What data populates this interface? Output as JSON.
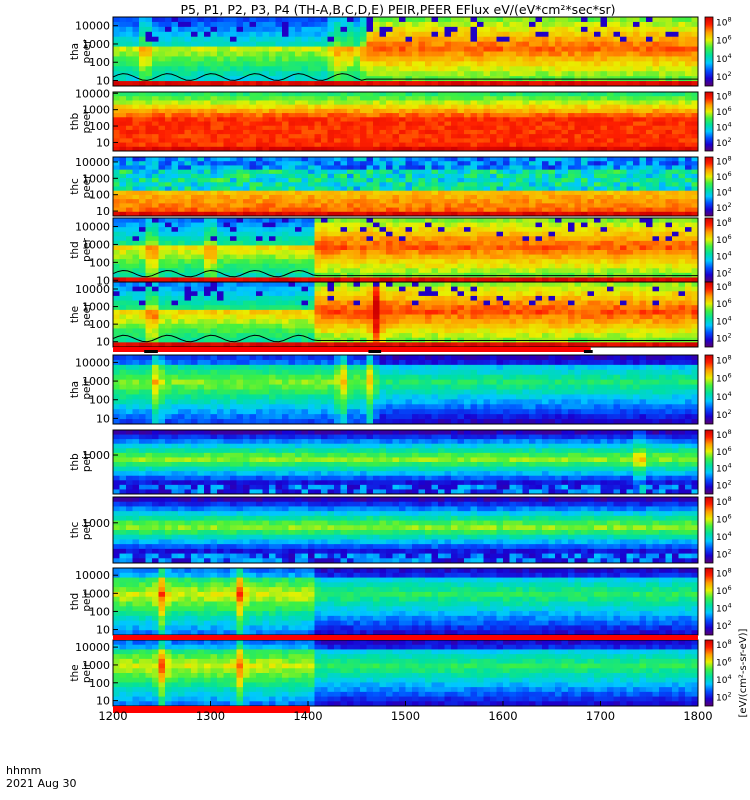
{
  "title": "P5, P1, P2, P3, P4 (TH-A,B,C,D,E) PEIR,PEER EFlux eV/(eV*cm²*sec*sr)",
  "footer": {
    "timeFormat": "hhmm",
    "date": "2021 Aug 30"
  },
  "chart_data": {
    "type": "heatmap",
    "x": {
      "label": "",
      "ticks": [
        1200,
        1300,
        1400,
        1500,
        1600,
        1700,
        1800
      ],
      "range": [
        1200,
        1800
      ]
    },
    "colorbar": {
      "label": "[eV/(cm²-s-sr-eV)]",
      "colors": [
        "#5a0070",
        "#1a00d0",
        "#0050ff",
        "#00c8ff",
        "#00e0a0",
        "#40f040",
        "#e8f000",
        "#ffa000",
        "#ff2000",
        "#d00000"
      ]
    },
    "panels": [
      {
        "probe": "tha",
        "species": "peer",
        "yscale": "log",
        "yrange": [
          5,
          30000
        ],
        "yticks": [
          10,
          100,
          1000,
          10000
        ],
        "cbticks": [
          100.0,
          10000.0,
          1000000.0,
          100000000.0
        ],
        "events": [
          1233,
          1428,
          1440,
          1455
        ],
        "transition": 1460,
        "before": 0.65,
        "after": 0.84,
        "background": "sparse",
        "floor_curve": true,
        "bottom_red": true
      },
      {
        "probe": "thb",
        "species": "peer",
        "yscale": "log",
        "yrange": [
          3,
          12000
        ],
        "yticks": [
          10,
          100,
          1000,
          10000
        ],
        "cbticks": [
          100.0,
          10000.0,
          1000000.0,
          100000000.0
        ],
        "events": [],
        "transition": null,
        "before": 0.88,
        "after": 0.88,
        "background": "uniform",
        "floor_curve": false,
        "bottom_red": true
      },
      {
        "probe": "thc",
        "species": "peer",
        "yscale": "log",
        "yrange": [
          5,
          20000
        ],
        "yticks": [
          10,
          100,
          1000,
          10000
        ],
        "cbticks": [
          100.0,
          10000.0,
          1000000.0,
          100000000.0
        ],
        "events": [],
        "transition": null,
        "before": 0.86,
        "after": 0.86,
        "background": "noisy",
        "floor_curve": false,
        "bottom_red": true
      },
      {
        "probe": "thd",
        "species": "peer",
        "yscale": "log",
        "yrange": [
          8,
          30000
        ],
        "yticks": [
          10,
          100,
          1000,
          10000
        ],
        "cbticks": [
          100.0,
          10000.0,
          1000000.0,
          100000000.0
        ],
        "events": [
          1240,
          1300
        ],
        "transition": 1410,
        "before": 0.7,
        "after": 0.85,
        "background": "sparse",
        "floor_curve": true,
        "bottom_red": true
      },
      {
        "probe": "the",
        "species": "peer",
        "yscale": "log",
        "yrange": [
          5,
          25000
        ],
        "yticks": [
          10,
          100,
          1000,
          10000
        ],
        "cbticks": [
          100.0,
          10000.0,
          1000000.0,
          100000000.0
        ],
        "events": [
          1240,
          1470
        ],
        "transition": 1410,
        "before": 0.72,
        "after": 0.86,
        "background": "sparse",
        "floor_curve": true,
        "bottom_red": true
      },
      {
        "probe": "tha",
        "species": "peir",
        "yscale": "log",
        "yrange": [
          5,
          25000
        ],
        "yticks": [
          10,
          100,
          1000,
          10000
        ],
        "cbticks": [
          100.0,
          10000.0,
          1000000.0,
          100000000.0
        ],
        "events": [
          1245,
          1435,
          1465
        ],
        "transition": 1470,
        "before": 0.6,
        "after": 0.5,
        "background": "ion",
        "floor_curve": false,
        "bottom_red": false
      },
      {
        "probe": "thb",
        "species": "peir",
        "yscale": "log",
        "yrange": [
          5,
          30000
        ],
        "yticks": [
          1000
        ],
        "cbticks": [
          100.0,
          10000.0,
          1000000.0,
          100000000.0
        ],
        "events": [
          1740
        ],
        "transition": null,
        "before": 0.62,
        "after": 0.62,
        "background": "band",
        "floor_curve": false,
        "bottom_red": false
      },
      {
        "probe": "thc",
        "species": "peir",
        "yscale": "log",
        "yrange": [
          5,
          30000
        ],
        "yticks": [
          1000
        ],
        "cbticks": [
          100.0,
          10000.0,
          1000000.0,
          100000000.0
        ],
        "events": [],
        "transition": null,
        "before": 0.62,
        "after": 0.62,
        "background": "band",
        "floor_curve": false,
        "bottom_red": false
      },
      {
        "probe": "thd",
        "species": "peir",
        "yscale": "log",
        "yrange": [
          5,
          25000
        ],
        "yticks": [
          10,
          100,
          1000,
          10000
        ],
        "cbticks": [
          100.0,
          10000.0,
          1000000.0,
          100000000.0
        ],
        "events": [
          1250,
          1330
        ],
        "transition": 1408,
        "before": 0.66,
        "after": 0.52,
        "background": "ion",
        "floor_curve": false,
        "bottom_red": false
      },
      {
        "probe": "the",
        "species": "peir",
        "yscale": "log",
        "yrange": [
          5,
          25000
        ],
        "yticks": [
          10,
          100,
          1000,
          10000
        ],
        "cbticks": [
          100.0,
          10000.0,
          1000000.0,
          100000000.0
        ],
        "events": [
          1250,
          1330
        ],
        "transition": 1408,
        "before": 0.66,
        "after": 0.52,
        "background": "ion",
        "floor_curve": false,
        "bottom_red": false
      }
    ],
    "mode_bars": [
      {
        "after_panel": 0,
        "color": "#ffffff",
        "segments": []
      },
      {
        "after_panel": 4,
        "color": "#ff0000",
        "segments": [
          [
            1200,
            1690
          ]
        ],
        "black_marks": [
          [
            1232,
            1246
          ],
          [
            1462,
            1475
          ],
          [
            1683,
            1692
          ]
        ]
      },
      {
        "after_panel": 5,
        "color": "#ffff00",
        "segments": []
      },
      {
        "after_panel": 7,
        "color": "#ff0000",
        "segments": [
          [
            1200,
            1800
          ]
        ]
      },
      {
        "after_panel": 8,
        "color": "#ff0000",
        "segments": [
          [
            1200,
            1402
          ]
        ]
      }
    ]
  }
}
